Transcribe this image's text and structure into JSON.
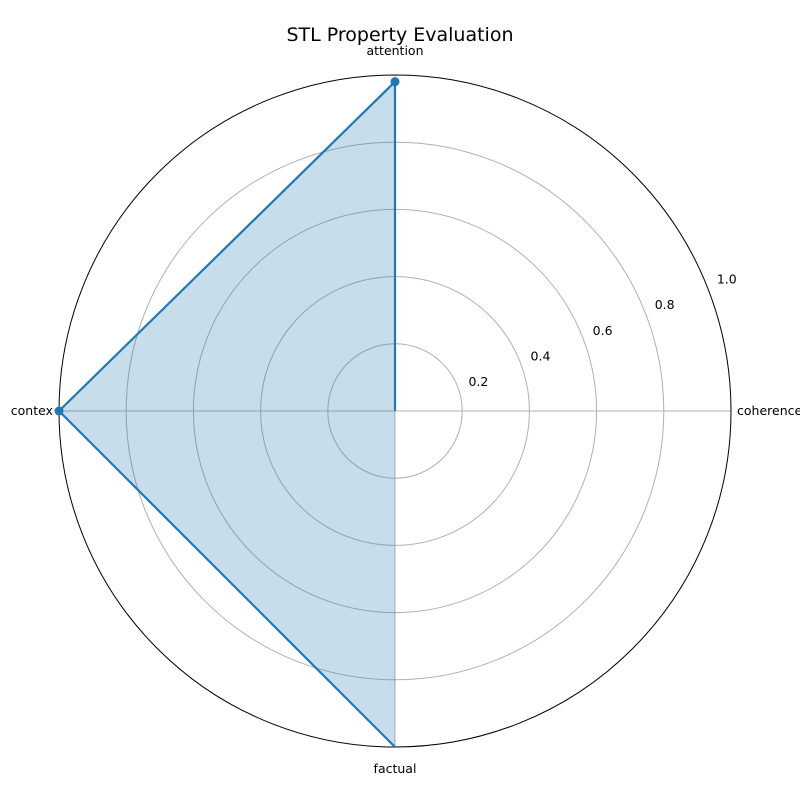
{
  "chart_data": {
    "type": "radar",
    "title": "STL Property Evaluation",
    "categories": [
      "coherence",
      "attention",
      "context",
      "factual"
    ],
    "category_display": [
      "coherence",
      "attention",
      "contex",
      "factual"
    ],
    "series": [
      {
        "name": "",
        "values": [
          0.0,
          0.98,
          1.0,
          1.0
        ],
        "color": "#1f77b4",
        "fill_color": "#1f77b4",
        "fill_opacity": 0.25
      }
    ],
    "points_shown": [
      false,
      true,
      true,
      false
    ],
    "radial_ticks": [
      0.2,
      0.4,
      0.6,
      0.8,
      1.0
    ],
    "radial_tick_labels": [
      "0.2",
      "0.4",
      "0.6",
      "0.8",
      "1.0"
    ],
    "rlim": [
      0,
      1.0
    ],
    "grid": true,
    "legend": false
  }
}
